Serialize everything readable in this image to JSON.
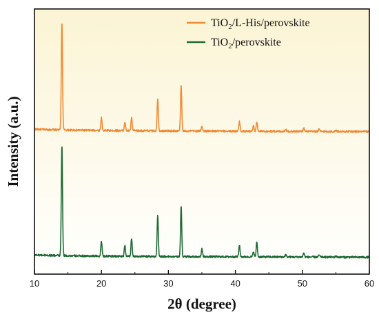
{
  "chart_data": {
    "type": "line",
    "xlabel": "2θ (degree)",
    "ylabel": "Intensity (a.u.)",
    "xlim": [
      10,
      60
    ],
    "xticks": [
      10,
      20,
      30,
      40,
      50,
      60
    ],
    "y_ticks_shown": false,
    "grid": false,
    "legend_position": "top-right",
    "background": {
      "top": "#fbf4d4",
      "bottom": "#ffffff"
    },
    "series": [
      {
        "name": "TiO₂/L-His/perovskite",
        "legend": {
          "base": "TiO",
          "sub": "2",
          "rest": "/L-His/perovskite"
        },
        "color": "#f08a34",
        "baseline": 1.0,
        "peaks": [
          {
            "x": 14.1,
            "h": 1.0
          },
          {
            "x": 20.0,
            "h": 0.12
          },
          {
            "x": 23.5,
            "h": 0.08
          },
          {
            "x": 24.5,
            "h": 0.12
          },
          {
            "x": 28.4,
            "h": 0.3
          },
          {
            "x": 31.9,
            "h": 0.42
          },
          {
            "x": 35.0,
            "h": 0.05
          },
          {
            "x": 40.6,
            "h": 0.09
          },
          {
            "x": 42.7,
            "h": 0.05
          },
          {
            "x": 43.2,
            "h": 0.09
          },
          {
            "x": 47.5,
            "h": 0.02
          },
          {
            "x": 50.2,
            "h": 0.03
          },
          {
            "x": 52.5,
            "h": 0.02
          },
          {
            "x": 55.0,
            "h": 0.01
          }
        ]
      },
      {
        "name": "TiO₂/perovskite",
        "legend": {
          "base": "TiO",
          "sub": "2",
          "rest": "/perovskite"
        },
        "color": "#1e6a34",
        "baseline": 0.0,
        "peaks": [
          {
            "x": 14.1,
            "h": 1.02
          },
          {
            "x": 20.0,
            "h": 0.14
          },
          {
            "x": 23.5,
            "h": 0.1
          },
          {
            "x": 24.5,
            "h": 0.17
          },
          {
            "x": 28.4,
            "h": 0.38
          },
          {
            "x": 31.9,
            "h": 0.47
          },
          {
            "x": 35.0,
            "h": 0.07
          },
          {
            "x": 40.6,
            "h": 0.11
          },
          {
            "x": 42.7,
            "h": 0.05
          },
          {
            "x": 43.2,
            "h": 0.14
          },
          {
            "x": 47.5,
            "h": 0.02
          },
          {
            "x": 50.2,
            "h": 0.04
          },
          {
            "x": 52.5,
            "h": 0.02
          },
          {
            "x": 55.0,
            "h": 0.01
          }
        ]
      }
    ]
  }
}
